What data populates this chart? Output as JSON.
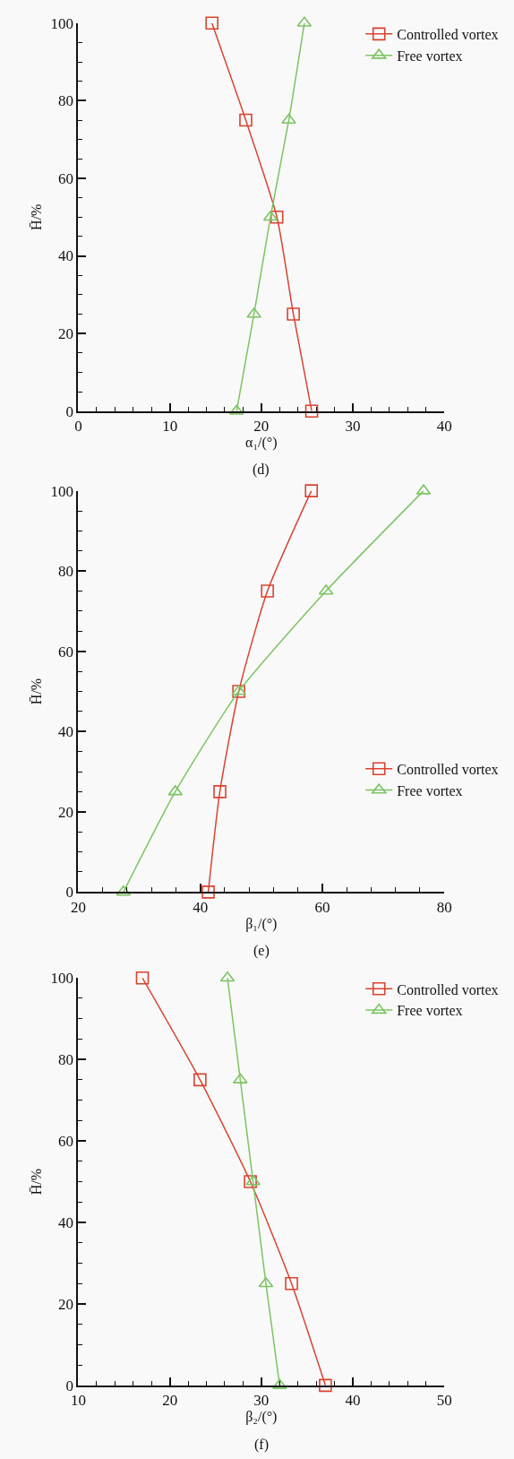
{
  "chart_data": [
    {
      "type": "line",
      "xlabel": "α₁/(°)",
      "ylabel": "H̄/%",
      "annotations": [
        "(d)"
      ],
      "xlim": [
        0,
        40
      ],
      "xticks": [
        0,
        10,
        20,
        30,
        40
      ],
      "ylim": [
        0,
        100
      ],
      "yticks": [
        0,
        20,
        40,
        60,
        80,
        100
      ],
      "legend": "top right",
      "grid": false,
      "series": [
        {
          "name": "Controlled vortex",
          "color": "#d9432f",
          "marker": "square",
          "x": [
            25.5,
            23.5,
            21.7,
            18.3,
            14.6
          ],
          "values": [
            0,
            25,
            50,
            75,
            100
          ]
        },
        {
          "name": "Free vortex",
          "color": "#7cc462",
          "marker": "triangle",
          "x": [
            17.3,
            19.2,
            21.0,
            23.0,
            24.7
          ],
          "values": [
            0,
            25,
            50,
            75,
            100
          ]
        }
      ]
    },
    {
      "type": "line",
      "xlabel": "β₁/(°)",
      "ylabel": "H̄/%",
      "annotations": [
        "(e)"
      ],
      "xlim": [
        20,
        80
      ],
      "xticks": [
        20,
        40,
        60,
        80
      ],
      "ylim": [
        0,
        100
      ],
      "yticks": [
        0,
        20,
        40,
        60,
        80,
        100
      ],
      "legend": "bottom right",
      "grid": false,
      "series": [
        {
          "name": "Controlled vortex",
          "color": "#d9432f",
          "marker": "square",
          "x": [
            41.3,
            43.2,
            46.3,
            51.0,
            58.2
          ],
          "values": [
            0,
            25,
            50,
            75,
            100
          ]
        },
        {
          "name": "Free vortex",
          "color": "#7cc462",
          "marker": "triangle",
          "x": [
            27.4,
            35.9,
            46.3,
            60.6,
            76.6
          ],
          "values": [
            0,
            25,
            50,
            75,
            100
          ]
        }
      ]
    },
    {
      "type": "line",
      "xlabel": "β₂/(°)",
      "ylabel": "H̄/%",
      "annotations": [
        "(f)"
      ],
      "xlim": [
        10,
        50
      ],
      "xticks": [
        10,
        20,
        30,
        40,
        50
      ],
      "ylim": [
        0,
        100
      ],
      "yticks": [
        0,
        20,
        40,
        60,
        80,
        100
      ],
      "legend": "top right",
      "grid": false,
      "series": [
        {
          "name": "Controlled vortex",
          "color": "#d9432f",
          "marker": "square",
          "x": [
            37.0,
            33.3,
            28.8,
            23.3,
            17.0
          ],
          "values": [
            0,
            25,
            50,
            75,
            100
          ]
        },
        {
          "name": "Free vortex",
          "color": "#7cc462",
          "marker": "triangle",
          "x": [
            32.0,
            30.5,
            29.1,
            27.7,
            26.3
          ],
          "values": [
            0,
            25,
            50,
            75,
            100
          ]
        }
      ]
    }
  ]
}
